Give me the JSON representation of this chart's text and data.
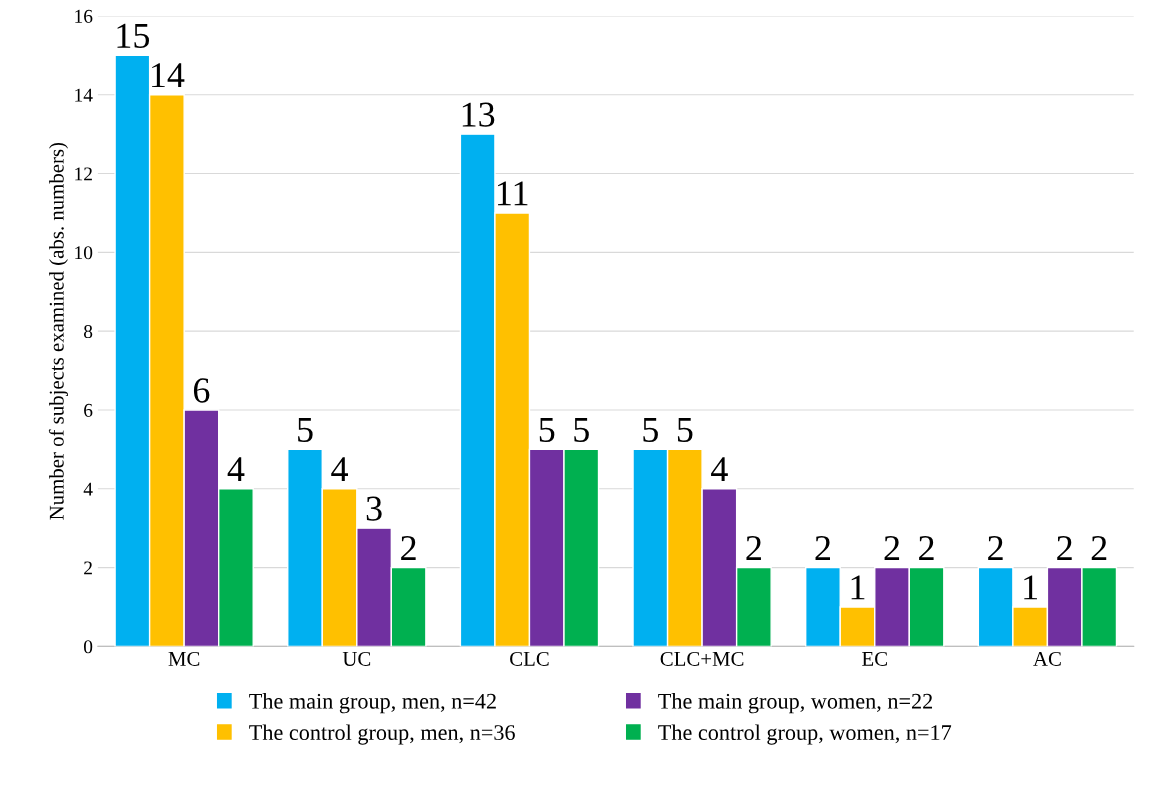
{
  "chart_data": {
    "type": "bar",
    "ylabel": "Number of subjects examined (abs. numbers)",
    "categories": [
      "MC",
      "UC",
      "CLC",
      "CLC+MC",
      "EC",
      "AC"
    ],
    "series": [
      {
        "name": "The main group, men, n=42",
        "color": "#00b0f0",
        "values": [
          15,
          5,
          13,
          5,
          2,
          2
        ]
      },
      {
        "name": "The control group, men, n=36",
        "color": "#ffc000",
        "values": [
          14,
          4,
          11,
          5,
          1,
          1
        ]
      },
      {
        "name": "The main group, women, n=22",
        "color": "#7030a0",
        "values": [
          6,
          3,
          5,
          4,
          2,
          2
        ]
      },
      {
        "name": "The control group, women, n=17",
        "color": "#00b050",
        "values": [
          4,
          2,
          5,
          2,
          2,
          2
        ]
      }
    ],
    "ylim": [
      0,
      16
    ],
    "yticks": [
      0,
      2,
      4,
      6,
      8,
      10,
      12,
      14,
      16
    ],
    "grid": "y",
    "legend": "bottom",
    "data_labels": true
  }
}
